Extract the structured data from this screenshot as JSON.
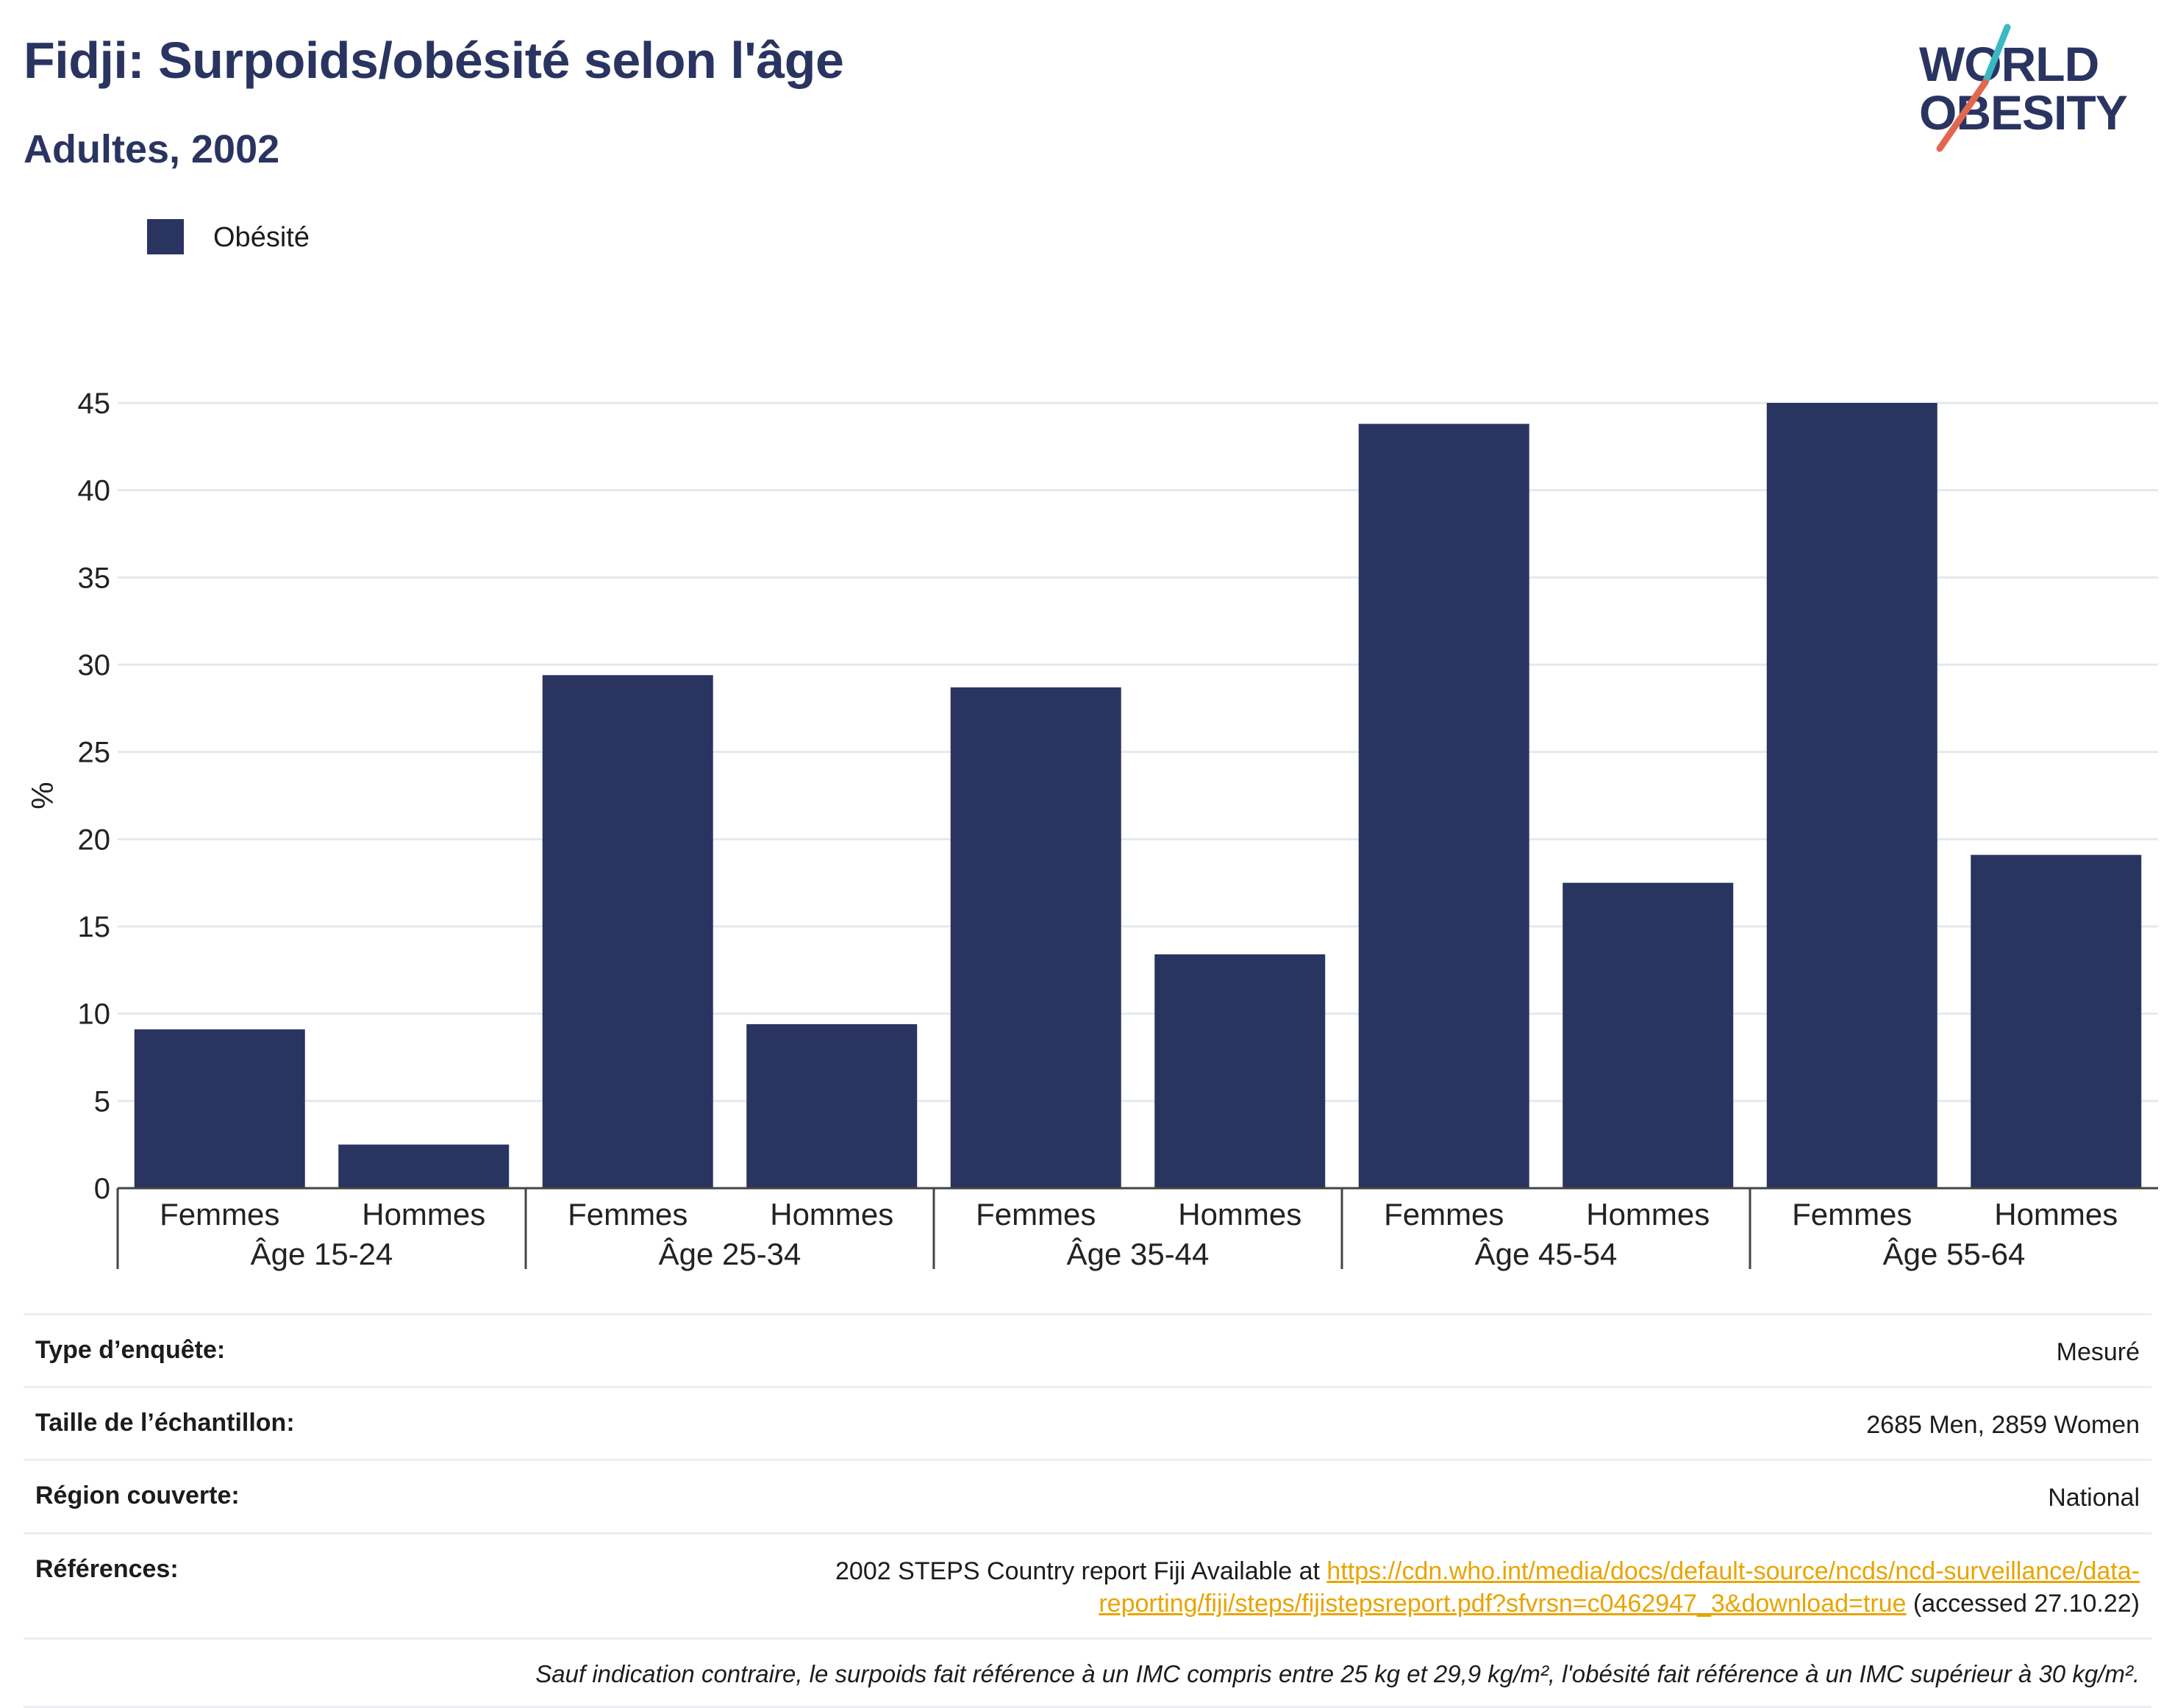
{
  "header": {
    "title": "Fidji: Surpoids/obésité selon l'âge",
    "subtitle": "Adultes, 2002"
  },
  "logo": {
    "line1": "WORLD",
    "line2": "OBESITY",
    "accent_colors": [
      "#3bb8c3",
      "#e2674f"
    ]
  },
  "legend": {
    "label": "Obésité",
    "color": "#2a3461"
  },
  "chart_data": {
    "type": "bar",
    "ylabel": "%",
    "ylim": [
      0,
      45
    ],
    "yticks": [
      0,
      5,
      10,
      15,
      20,
      25,
      30,
      35,
      40,
      45
    ],
    "grid": true,
    "bar_color": "#2a3461",
    "groups": [
      {
        "label": "Âge 15-24",
        "categories": [
          "Femmes",
          "Hommes"
        ],
        "values": [
          9.1,
          2.5
        ]
      },
      {
        "label": "Âge 25-34",
        "categories": [
          "Femmes",
          "Hommes"
        ],
        "values": [
          29.4,
          9.4
        ]
      },
      {
        "label": "Âge 35-44",
        "categories": [
          "Femmes",
          "Hommes"
        ],
        "values": [
          28.7,
          13.4
        ]
      },
      {
        "label": "Âge 45-54",
        "categories": [
          "Femmes",
          "Hommes"
        ],
        "values": [
          43.8,
          17.5
        ]
      },
      {
        "label": "Âge 55-64",
        "categories": [
          "Femmes",
          "Hommes"
        ],
        "values": [
          45.0,
          19.1
        ]
      }
    ]
  },
  "info": {
    "survey_type_key": "Type d’enquête:",
    "survey_type_val": "Mesuré",
    "sample_key": "Taille de l’échantillon:",
    "sample_val": "2685 Men, 2859 Women",
    "region_key": "Région couverte:",
    "region_val": "National",
    "refs_key": "Références:",
    "refs_prefix": "2002 STEPS Country report Fiji Available at ",
    "refs_link": "https://cdn.who.int/media/docs/default-source/ncds/ncd-surveillance/data-reporting/fiji/steps/fijistepsreport.pdf?sfvrsn=c0462947_3&download=true",
    "refs_suffix": " (accessed 27.10.22)",
    "note": "Sauf indication contraire, le surpoids fait référence à un IMC compris entre 25 kg et 29,9 kg/m², l'obésité fait référence à un IMC supérieur à 30 kg/m²."
  }
}
